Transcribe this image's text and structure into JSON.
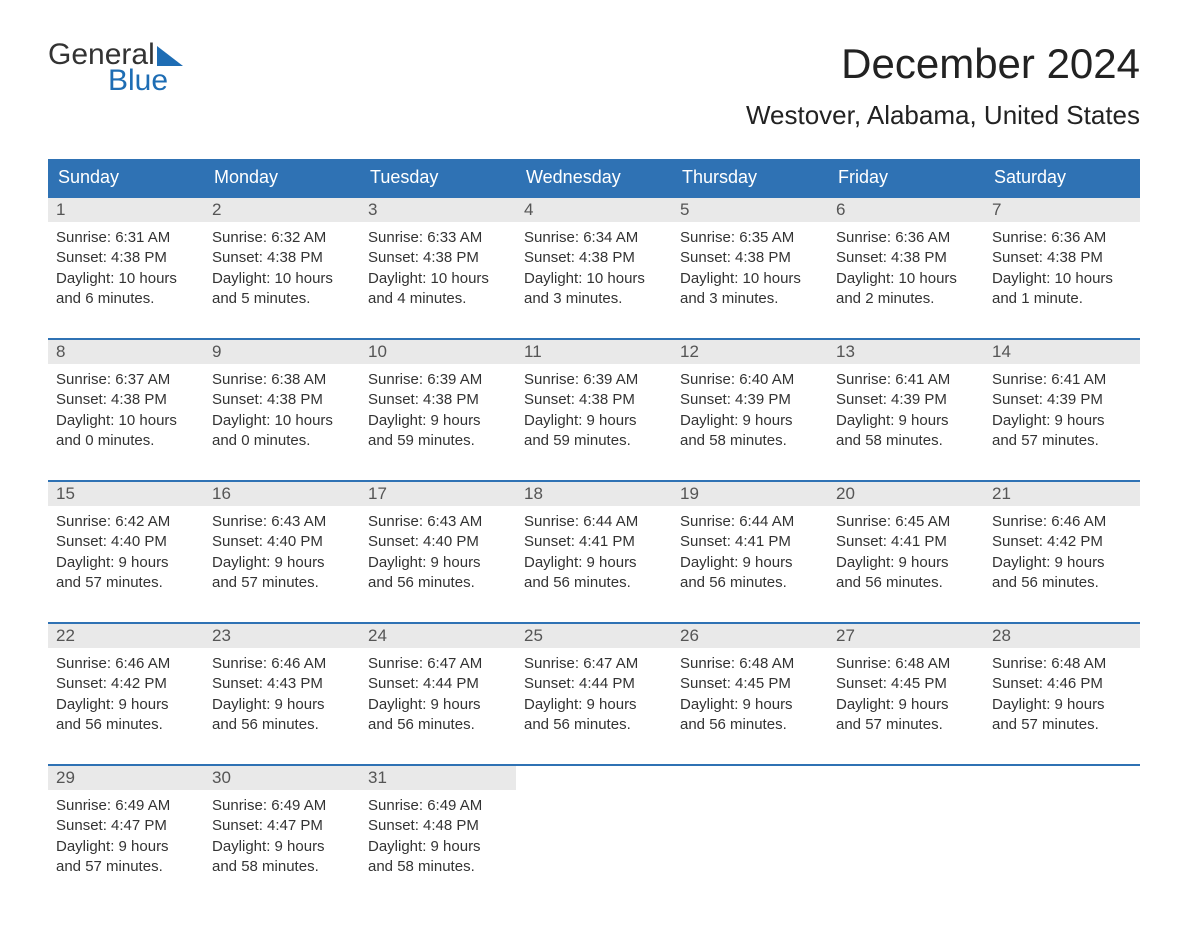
{
  "logo": {
    "line1": "General",
    "line2": "Blue"
  },
  "title": "December 2024",
  "location": "Westover, Alabama, United States",
  "colors": {
    "header_bg": "#2f72b4",
    "header_text": "#ffffff",
    "week_border": "#2f72b4",
    "daynum_bg": "#e9e9e9",
    "daynum_text": "#555555",
    "body_text": "#333333",
    "logo_accent": "#1e6db4",
    "page_bg": "#ffffff"
  },
  "day_names": [
    "Sunday",
    "Monday",
    "Tuesday",
    "Wednesday",
    "Thursday",
    "Friday",
    "Saturday"
  ],
  "labels": {
    "sunrise": "Sunrise:",
    "sunset": "Sunset:",
    "daylight": "Daylight:"
  },
  "weeks": [
    [
      {
        "n": "1",
        "sunrise": "6:31 AM",
        "sunset": "4:38 PM",
        "daylight": "10 hours and 6 minutes."
      },
      {
        "n": "2",
        "sunrise": "6:32 AM",
        "sunset": "4:38 PM",
        "daylight": "10 hours and 5 minutes."
      },
      {
        "n": "3",
        "sunrise": "6:33 AM",
        "sunset": "4:38 PM",
        "daylight": "10 hours and 4 minutes."
      },
      {
        "n": "4",
        "sunrise": "6:34 AM",
        "sunset": "4:38 PM",
        "daylight": "10 hours and 3 minutes."
      },
      {
        "n": "5",
        "sunrise": "6:35 AM",
        "sunset": "4:38 PM",
        "daylight": "10 hours and 3 minutes."
      },
      {
        "n": "6",
        "sunrise": "6:36 AM",
        "sunset": "4:38 PM",
        "daylight": "10 hours and 2 minutes."
      },
      {
        "n": "7",
        "sunrise": "6:36 AM",
        "sunset": "4:38 PM",
        "daylight": "10 hours and 1 minute."
      }
    ],
    [
      {
        "n": "8",
        "sunrise": "6:37 AM",
        "sunset": "4:38 PM",
        "daylight": "10 hours and 0 minutes."
      },
      {
        "n": "9",
        "sunrise": "6:38 AM",
        "sunset": "4:38 PM",
        "daylight": "10 hours and 0 minutes."
      },
      {
        "n": "10",
        "sunrise": "6:39 AM",
        "sunset": "4:38 PM",
        "daylight": "9 hours and 59 minutes."
      },
      {
        "n": "11",
        "sunrise": "6:39 AM",
        "sunset": "4:38 PM",
        "daylight": "9 hours and 59 minutes."
      },
      {
        "n": "12",
        "sunrise": "6:40 AM",
        "sunset": "4:39 PM",
        "daylight": "9 hours and 58 minutes."
      },
      {
        "n": "13",
        "sunrise": "6:41 AM",
        "sunset": "4:39 PM",
        "daylight": "9 hours and 58 minutes."
      },
      {
        "n": "14",
        "sunrise": "6:41 AM",
        "sunset": "4:39 PM",
        "daylight": "9 hours and 57 minutes."
      }
    ],
    [
      {
        "n": "15",
        "sunrise": "6:42 AM",
        "sunset": "4:40 PM",
        "daylight": "9 hours and 57 minutes."
      },
      {
        "n": "16",
        "sunrise": "6:43 AM",
        "sunset": "4:40 PM",
        "daylight": "9 hours and 57 minutes."
      },
      {
        "n": "17",
        "sunrise": "6:43 AM",
        "sunset": "4:40 PM",
        "daylight": "9 hours and 56 minutes."
      },
      {
        "n": "18",
        "sunrise": "6:44 AM",
        "sunset": "4:41 PM",
        "daylight": "9 hours and 56 minutes."
      },
      {
        "n": "19",
        "sunrise": "6:44 AM",
        "sunset": "4:41 PM",
        "daylight": "9 hours and 56 minutes."
      },
      {
        "n": "20",
        "sunrise": "6:45 AM",
        "sunset": "4:41 PM",
        "daylight": "9 hours and 56 minutes."
      },
      {
        "n": "21",
        "sunrise": "6:46 AM",
        "sunset": "4:42 PM",
        "daylight": "9 hours and 56 minutes."
      }
    ],
    [
      {
        "n": "22",
        "sunrise": "6:46 AM",
        "sunset": "4:42 PM",
        "daylight": "9 hours and 56 minutes."
      },
      {
        "n": "23",
        "sunrise": "6:46 AM",
        "sunset": "4:43 PM",
        "daylight": "9 hours and 56 minutes."
      },
      {
        "n": "24",
        "sunrise": "6:47 AM",
        "sunset": "4:44 PM",
        "daylight": "9 hours and 56 minutes."
      },
      {
        "n": "25",
        "sunrise": "6:47 AM",
        "sunset": "4:44 PM",
        "daylight": "9 hours and 56 minutes."
      },
      {
        "n": "26",
        "sunrise": "6:48 AM",
        "sunset": "4:45 PM",
        "daylight": "9 hours and 56 minutes."
      },
      {
        "n": "27",
        "sunrise": "6:48 AM",
        "sunset": "4:45 PM",
        "daylight": "9 hours and 57 minutes."
      },
      {
        "n": "28",
        "sunrise": "6:48 AM",
        "sunset": "4:46 PM",
        "daylight": "9 hours and 57 minutes."
      }
    ],
    [
      {
        "n": "29",
        "sunrise": "6:49 AM",
        "sunset": "4:47 PM",
        "daylight": "9 hours and 57 minutes."
      },
      {
        "n": "30",
        "sunrise": "6:49 AM",
        "sunset": "4:47 PM",
        "daylight": "9 hours and 58 minutes."
      },
      {
        "n": "31",
        "sunrise": "6:49 AM",
        "sunset": "4:48 PM",
        "daylight": "9 hours and 58 minutes."
      },
      null,
      null,
      null,
      null
    ]
  ]
}
